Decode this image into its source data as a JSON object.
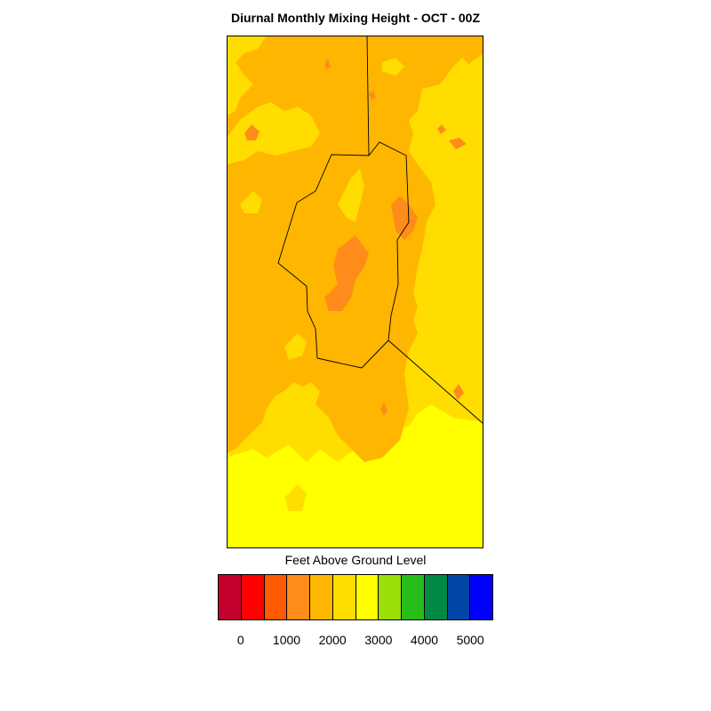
{
  "title": "Diurnal Monthly Mixing Height - OCT - 00Z",
  "legend": {
    "title": "Feet Above Ground Level",
    "colors": [
      "#c4002e",
      "#ff0000",
      "#ff5a00",
      "#ff8c1a",
      "#ffb600",
      "#ffdd00",
      "#ffff00",
      "#9bde0a",
      "#28be1a",
      "#008a46",
      "#0047a8",
      "#0000ff"
    ],
    "ticks": [
      "0",
      "1000",
      "2000",
      "3000",
      "4000",
      "5000"
    ]
  },
  "palette": {
    "band_1500_2000": "#ff8c1a",
    "band_2000_2500": "#ffb600",
    "band_2500_3000": "#ffdd00",
    "band_3000_3500": "#ffff00",
    "band_1000_1500": "#ff5a00"
  }
}
